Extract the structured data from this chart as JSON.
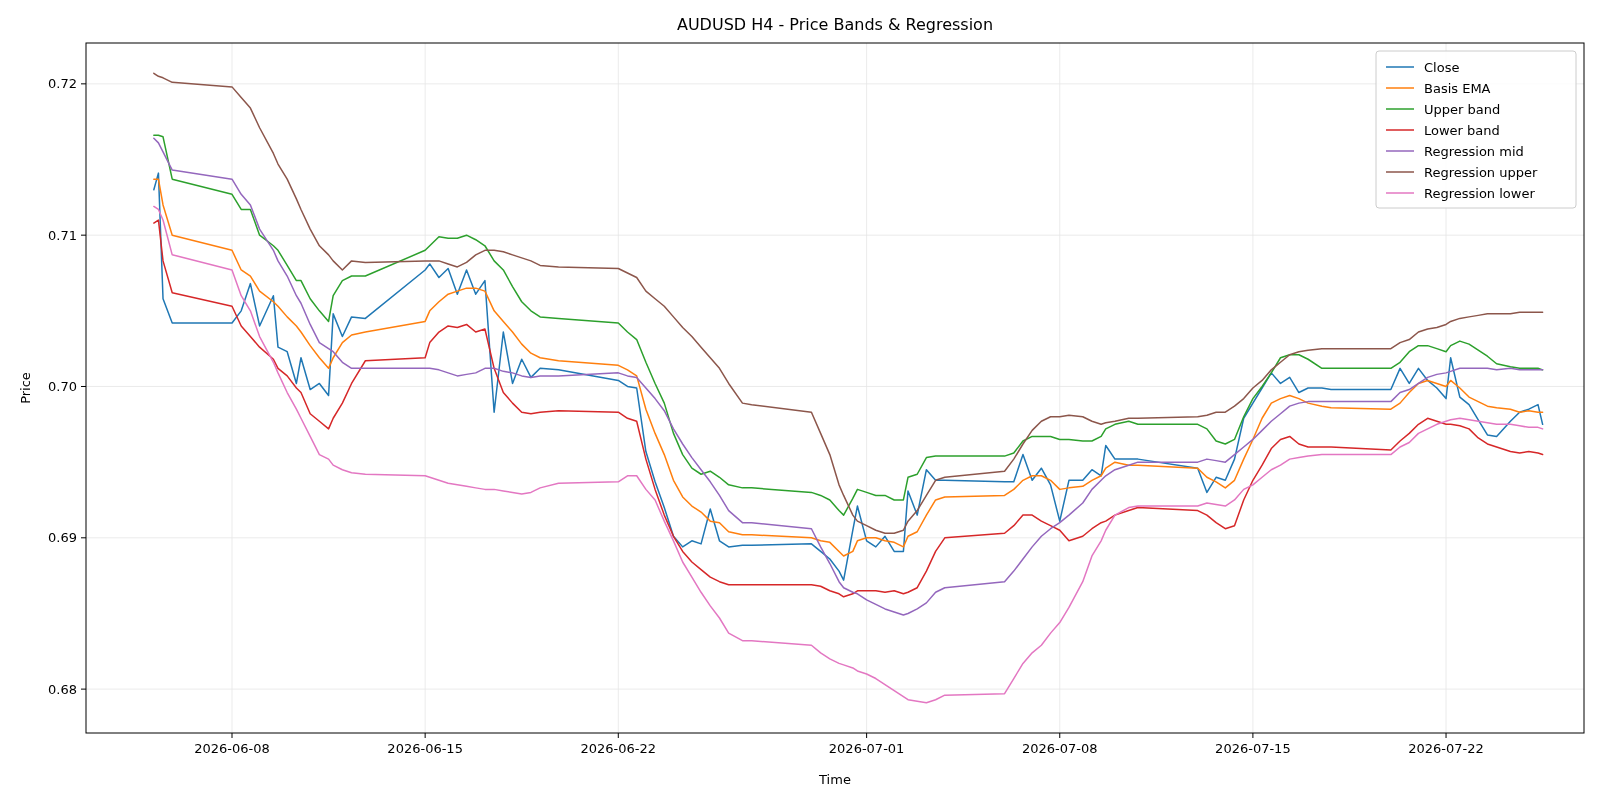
{
  "chart_data": {
    "type": "line",
    "title": "AUDUSD H4 - Price Bands & Regression",
    "xlabel": "Time",
    "ylabel": "Price",
    "x": [
      "2026-06-05T04:00",
      "2026-06-05T08:00",
      "2026-06-05T12:00",
      "2026-06-05T20:00",
      "2026-06-08T00:00",
      "2026-06-08T08:00",
      "2026-06-08T16:00",
      "2026-06-09T00:00",
      "2026-06-09T12:00",
      "2026-06-09T16:00",
      "2026-06-10T00:00",
      "2026-06-10T08:00",
      "2026-06-10T12:00",
      "2026-06-10T20:00",
      "2026-06-11T04:00",
      "2026-06-11T12:00",
      "2026-06-11T16:00",
      "2026-06-12T00:00",
      "2026-06-12T08:00",
      "2026-06-12T20:00",
      "2026-06-15T00:00",
      "2026-06-15T04:00",
      "2026-06-15T12:00",
      "2026-06-15T20:00",
      "2026-06-16T04:00",
      "2026-06-16T12:00",
      "2026-06-16T20:00",
      "2026-06-17T04:00",
      "2026-06-17T12:00",
      "2026-06-17T20:00",
      "2026-06-18T04:00",
      "2026-06-18T12:00",
      "2026-06-18T20:00",
      "2026-06-19T04:00",
      "2026-06-19T20:00",
      "2026-06-22T00:00",
      "2026-06-22T08:00",
      "2026-06-22T16:00",
      "2026-06-23T00:00",
      "2026-06-23T08:00",
      "2026-06-23T16:00",
      "2026-06-24T00:00",
      "2026-06-24T08:00",
      "2026-06-24T16:00",
      "2026-06-25T00:00",
      "2026-06-25T08:00",
      "2026-06-25T16:00",
      "2026-06-26T00:00",
      "2026-06-26T12:00",
      "2026-06-26T20:00",
      "2026-06-29T00:00",
      "2026-06-29T08:00",
      "2026-06-29T16:00",
      "2026-06-30T00:00",
      "2026-06-30T04:00",
      "2026-06-30T12:00",
      "2026-06-30T16:00",
      "2026-07-01T00:00",
      "2026-07-01T08:00",
      "2026-07-01T16:00",
      "2026-07-02T00:00",
      "2026-07-02T08:00",
      "2026-07-02T12:00",
      "2026-07-02T20:00",
      "2026-07-03T04:00",
      "2026-07-03T12:00",
      "2026-07-03T20:00",
      "2026-07-06T00:00",
      "2026-07-06T08:00",
      "2026-07-06T16:00",
      "2026-07-07T00:00",
      "2026-07-07T08:00",
      "2026-07-07T16:00",
      "2026-07-08T00:00",
      "2026-07-08T08:00",
      "2026-07-08T20:00",
      "2026-07-09T04:00",
      "2026-07-09T12:00",
      "2026-07-09T16:00",
      "2026-07-10T00:00",
      "2026-07-10T12:00",
      "2026-07-10T20:00",
      "2026-07-13T00:00",
      "2026-07-13T08:00",
      "2026-07-13T16:00",
      "2026-07-14T00:00",
      "2026-07-14T08:00",
      "2026-07-14T16:00",
      "2026-07-15T00:00",
      "2026-07-15T08:00",
      "2026-07-15T16:00",
      "2026-07-16T00:00",
      "2026-07-16T08:00",
      "2026-07-16T16:00",
      "2026-07-17T00:00",
      "2026-07-17T12:00",
      "2026-07-17T20:00",
      "2026-07-20T00:00",
      "2026-07-20T08:00",
      "2026-07-20T16:00",
      "2026-07-21T00:00",
      "2026-07-21T08:00",
      "2026-07-21T16:00",
      "2026-07-22T00:00",
      "2026-07-22T04:00",
      "2026-07-22T12:00",
      "2026-07-22T20:00",
      "2026-07-23T04:00",
      "2026-07-23T12:00",
      "2026-07-23T20:00",
      "2026-07-24T08:00",
      "2026-07-24T16:00",
      "2026-07-25T00:00",
      "2026-07-25T08:00",
      "2026-07-25T12:00"
    ],
    "series": [
      {
        "name": "Close",
        "color": "#1f77b4",
        "values": [
          0.713,
          0.7141,
          0.7058,
          0.7042,
          0.7042,
          0.705,
          0.7068,
          0.704,
          0.706,
          0.7026,
          0.7023,
          0.7002,
          0.7019,
          0.6998,
          0.7002,
          0.6994,
          0.7048,
          0.7033,
          0.7046,
          0.7045,
          0.7077,
          0.7081,
          0.7072,
          0.7078,
          0.7061,
          0.7077,
          0.7061,
          0.707,
          0.6983,
          0.7036,
          0.7002,
          0.7018,
          0.7006,
          0.7012,
          0.7011,
          0.7004,
          0.7,
          0.6999,
          0.6957,
          0.6937,
          0.692,
          0.6901,
          0.6894,
          0.6898,
          0.6896,
          0.6919,
          0.6898,
          0.6894,
          0.6895,
          0.6895,
          0.6896,
          0.6891,
          0.6886,
          0.6878,
          0.6872,
          0.6905,
          0.6921,
          0.6898,
          0.6894,
          0.6901,
          0.6891,
          0.6891,
          0.6931,
          0.6915,
          0.6945,
          0.6938,
          0.6938,
          0.6937,
          0.6937,
          0.6955,
          0.6938,
          0.6946,
          0.6935,
          0.6911,
          0.6938,
          0.6938,
          0.6945,
          0.6941,
          0.6961,
          0.6952,
          0.6952,
          0.6952,
          0.6946,
          0.693,
          0.694,
          0.6938,
          0.6952,
          0.6979,
          0.6989,
          0.6999,
          0.7009,
          0.7002,
          0.7006,
          0.6996,
          0.6999,
          0.6999,
          0.6998,
          0.6998,
          0.7012,
          0.7002,
          0.7012,
          0.7004,
          0.6999,
          0.6992,
          0.7019,
          0.6993,
          0.6988,
          0.6978,
          0.6968,
          0.6967,
          0.6977,
          0.6983,
          0.6985,
          0.6988,
          0.6975
        ]
      },
      {
        "name": "Basis EMA",
        "color": "#ff7f0e",
        "values": [
          0.7137,
          0.7137,
          0.712,
          0.71,
          0.709,
          0.7077,
          0.7073,
          0.7063,
          0.7056,
          0.7053,
          0.7046,
          0.704,
          0.7036,
          0.7027,
          0.7019,
          0.7012,
          0.7019,
          0.7029,
          0.7034,
          0.7036,
          0.7043,
          0.705,
          0.7056,
          0.7061,
          0.7063,
          0.7065,
          0.7065,
          0.7063,
          0.705,
          0.7043,
          0.7036,
          0.7028,
          0.7022,
          0.7019,
          0.7017,
          0.7014,
          0.7011,
          0.7007,
          0.6985,
          0.6969,
          0.6955,
          0.6938,
          0.6927,
          0.6921,
          0.6917,
          0.6911,
          0.691,
          0.6904,
          0.6902,
          0.6902,
          0.69,
          0.6898,
          0.6897,
          0.6891,
          0.6888,
          0.6891,
          0.6898,
          0.69,
          0.69,
          0.6898,
          0.6897,
          0.6894,
          0.6901,
          0.6904,
          0.6915,
          0.6925,
          0.6927,
          0.6928,
          0.6932,
          0.6938,
          0.6941,
          0.6941,
          0.6938,
          0.6932,
          0.6933,
          0.6934,
          0.6938,
          0.6941,
          0.6946,
          0.695,
          0.6948,
          0.6948,
          0.6946,
          0.694,
          0.6937,
          0.6933,
          0.6938,
          0.6952,
          0.6965,
          0.6979,
          0.6989,
          0.6992,
          0.6994,
          0.6992,
          0.6989,
          0.6987,
          0.6986,
          0.6985,
          0.6989,
          0.6996,
          0.7002,
          0.7004,
          0.7002,
          0.7,
          0.7004,
          0.6999,
          0.6993,
          0.699,
          0.6987,
          0.6986,
          0.6985,
          0.6983,
          0.6984,
          0.6983,
          0.6983
        ]
      },
      {
        "name": "Upper band",
        "color": "#2ca02c",
        "values": [
          0.7166,
          0.7166,
          0.7165,
          0.7137,
          0.7127,
          0.7117,
          0.7117,
          0.71,
          0.7093,
          0.709,
          0.708,
          0.707,
          0.707,
          0.7058,
          0.705,
          0.7043,
          0.706,
          0.707,
          0.7073,
          0.7073,
          0.709,
          0.7093,
          0.7099,
          0.7098,
          0.7098,
          0.71,
          0.7097,
          0.7093,
          0.7083,
          0.7077,
          0.7066,
          0.7056,
          0.705,
          0.7046,
          0.7045,
          0.7042,
          0.7036,
          0.7031,
          0.7016,
          0.7002,
          0.6989,
          0.6969,
          0.6955,
          0.6946,
          0.6942,
          0.6944,
          0.694,
          0.6935,
          0.6933,
          0.6933,
          0.693,
          0.6928,
          0.6925,
          0.6918,
          0.6915,
          0.6926,
          0.6932,
          0.693,
          0.6928,
          0.6928,
          0.6925,
          0.6925,
          0.694,
          0.6942,
          0.6953,
          0.6954,
          0.6954,
          0.6954,
          0.6956,
          0.6964,
          0.6967,
          0.6967,
          0.6967,
          0.6965,
          0.6965,
          0.6964,
          0.6964,
          0.6967,
          0.6972,
          0.6975,
          0.6977,
          0.6975,
          0.6975,
          0.6972,
          0.6964,
          0.6962,
          0.6965,
          0.698,
          0.6992,
          0.7,
          0.7009,
          0.7019,
          0.7021,
          0.7021,
          0.7018,
          0.7012,
          0.7012,
          0.7012,
          0.7016,
          0.7023,
          0.7027,
          0.7027,
          0.7025,
          0.7023,
          0.7027,
          0.703,
          0.7028,
          0.7024,
          0.702,
          0.7015,
          0.7013,
          0.7012,
          0.7012,
          0.7012,
          0.7011
        ]
      },
      {
        "name": "Lower band",
        "color": "#d62728",
        "values": [
          0.7108,
          0.711,
          0.7083,
          0.7062,
          0.7053,
          0.704,
          0.7033,
          0.7026,
          0.7018,
          0.7012,
          0.7007,
          0.6999,
          0.6996,
          0.6982,
          0.6977,
          0.6972,
          0.6979,
          0.6989,
          0.7002,
          0.7017,
          0.7019,
          0.7029,
          0.7036,
          0.704,
          0.7039,
          0.7041,
          0.7036,
          0.7038,
          0.7012,
          0.6996,
          0.6989,
          0.6983,
          0.6982,
          0.6983,
          0.6984,
          0.6983,
          0.6979,
          0.6977,
          0.6952,
          0.6932,
          0.6915,
          0.6901,
          0.6891,
          0.6884,
          0.6879,
          0.6874,
          0.6871,
          0.6869,
          0.6869,
          0.6869,
          0.6869,
          0.6868,
          0.6865,
          0.6863,
          0.6861,
          0.6863,
          0.6865,
          0.6865,
          0.6865,
          0.6864,
          0.6865,
          0.6863,
          0.6864,
          0.6867,
          0.6878,
          0.6891,
          0.69,
          0.6903,
          0.6908,
          0.6915,
          0.6915,
          0.6911,
          0.6908,
          0.6905,
          0.6898,
          0.6901,
          0.6906,
          0.691,
          0.6911,
          0.6915,
          0.6918,
          0.692,
          0.6918,
          0.6915,
          0.691,
          0.6906,
          0.6908,
          0.6925,
          0.6938,
          0.6948,
          0.6959,
          0.6965,
          0.6967,
          0.6962,
          0.696,
          0.696,
          0.696,
          0.6958,
          0.6964,
          0.6969,
          0.6975,
          0.6979,
          0.6977,
          0.6975,
          0.6975,
          0.6974,
          0.6972,
          0.6966,
          0.6962,
          0.696,
          0.6957,
          0.6956,
          0.6957,
          0.6956,
          0.6955
        ]
      },
      {
        "name": "Regression mid",
        "color": "#9467bd",
        "values": [
          0.7164,
          0.7161,
          0.7155,
          0.7143,
          0.7137,
          0.7127,
          0.712,
          0.7104,
          0.709,
          0.7083,
          0.7073,
          0.706,
          0.7055,
          0.7041,
          0.7029,
          0.7025,
          0.7023,
          0.7016,
          0.7012,
          0.7012,
          0.7012,
          0.7012,
          0.7011,
          0.7009,
          0.7007,
          0.7008,
          0.7009,
          0.7012,
          0.7012,
          0.701,
          0.7009,
          0.7007,
          0.7006,
          0.7007,
          0.7007,
          0.7009,
          0.7007,
          0.7006,
          0.6999,
          0.6992,
          0.6984,
          0.6972,
          0.6962,
          0.6953,
          0.6945,
          0.6937,
          0.6928,
          0.6918,
          0.691,
          0.691,
          0.6906,
          0.6894,
          0.6883,
          0.6871,
          0.6867,
          0.6864,
          0.6863,
          0.6859,
          0.6856,
          0.6853,
          0.6851,
          0.6849,
          0.685,
          0.6853,
          0.6857,
          0.6864,
          0.6867,
          0.6871,
          0.6878,
          0.6886,
          0.6894,
          0.6901,
          0.6906,
          0.691,
          0.6915,
          0.6923,
          0.6932,
          0.6938,
          0.6941,
          0.6945,
          0.6948,
          0.695,
          0.695,
          0.6952,
          0.6951,
          0.695,
          0.6955,
          0.696,
          0.6965,
          0.6971,
          0.6977,
          0.6982,
          0.6987,
          0.6989,
          0.699,
          0.699,
          0.699,
          0.699,
          0.6996,
          0.6998,
          0.7002,
          0.7006,
          0.7008,
          0.7009,
          0.701,
          0.7012,
          0.7012,
          0.7012,
          0.7012,
          0.7011,
          0.7012,
          0.7011,
          0.7011,
          0.7011,
          0.7011
        ]
      },
      {
        "name": "Regression upper",
        "color": "#8c564b",
        "values": [
          0.7207,
          0.7205,
          0.7204,
          0.7201,
          0.7198,
          0.7191,
          0.7184,
          0.7171,
          0.7154,
          0.7147,
          0.7137,
          0.7124,
          0.7117,
          0.7104,
          0.7093,
          0.7087,
          0.7083,
          0.7077,
          0.7083,
          0.7082,
          0.7083,
          0.7083,
          0.7083,
          0.7081,
          0.7079,
          0.7082,
          0.7087,
          0.709,
          0.709,
          0.7089,
          0.7087,
          0.7085,
          0.7083,
          0.708,
          0.7079,
          0.7078,
          0.7075,
          0.7072,
          0.7063,
          0.7058,
          0.7053,
          0.7046,
          0.7039,
          0.7033,
          0.7026,
          0.7019,
          0.7012,
          0.7002,
          0.6989,
          0.6988,
          0.6983,
          0.6969,
          0.6955,
          0.6935,
          0.6928,
          0.6915,
          0.6911,
          0.6908,
          0.6905,
          0.6903,
          0.6903,
          0.6905,
          0.6911,
          0.6918,
          0.6928,
          0.6938,
          0.694,
          0.6944,
          0.6952,
          0.6962,
          0.6971,
          0.6977,
          0.698,
          0.698,
          0.6981,
          0.698,
          0.6977,
          0.6975,
          0.6976,
          0.6977,
          0.6979,
          0.6979,
          0.698,
          0.6981,
          0.6983,
          0.6983,
          0.6987,
          0.6992,
          0.6999,
          0.7004,
          0.7011,
          0.7016,
          0.7021,
          0.7023,
          0.7024,
          0.7025,
          0.7025,
          0.7025,
          0.7029,
          0.7031,
          0.7036,
          0.7038,
          0.7039,
          0.7041,
          0.7043,
          0.7045,
          0.7046,
          0.7047,
          0.7048,
          0.7048,
          0.7048,
          0.7049,
          0.7049,
          0.7049,
          0.7049
        ]
      },
      {
        "name": "Regression lower",
        "color": "#e377c2",
        "values": [
          0.7119,
          0.7117,
          0.711,
          0.7087,
          0.7077,
          0.706,
          0.705,
          0.7033,
          0.7016,
          0.7009,
          0.6996,
          0.6985,
          0.6979,
          0.6967,
          0.6955,
          0.6952,
          0.6948,
          0.6945,
          0.6943,
          0.6942,
          0.6941,
          0.694,
          0.6938,
          0.6936,
          0.6935,
          0.6934,
          0.6933,
          0.6932,
          0.6932,
          0.6931,
          0.693,
          0.6929,
          0.693,
          0.6933,
          0.6936,
          0.6937,
          0.6941,
          0.6941,
          0.6932,
          0.6925,
          0.6911,
          0.6898,
          0.6884,
          0.6874,
          0.6864,
          0.6855,
          0.6847,
          0.6837,
          0.6832,
          0.6832,
          0.6829,
          0.6824,
          0.682,
          0.6817,
          0.6816,
          0.6814,
          0.6812,
          0.681,
          0.6807,
          0.6803,
          0.6799,
          0.6795,
          0.6793,
          0.6792,
          0.6791,
          0.6793,
          0.6796,
          0.6797,
          0.6807,
          0.6817,
          0.6824,
          0.6829,
          0.6837,
          0.6844,
          0.6854,
          0.6871,
          0.6888,
          0.6898,
          0.6905,
          0.6915,
          0.692,
          0.6921,
          0.6921,
          0.6923,
          0.6922,
          0.6921,
          0.6925,
          0.6932,
          0.6935,
          0.694,
          0.6945,
          0.6948,
          0.6952,
          0.6953,
          0.6954,
          0.6955,
          0.6955,
          0.6955,
          0.696,
          0.6963,
          0.6969,
          0.6972,
          0.6975,
          0.6977,
          0.6978,
          0.6979,
          0.6978,
          0.6977,
          0.6976,
          0.6975,
          0.6975,
          0.6974,
          0.6973,
          0.6973,
          0.6972
        ]
      }
    ],
    "xlim": [
      "2026-06-02T17:00",
      "2026-07-27T00:00"
    ],
    "xticks": [
      "2026-06-08",
      "2026-06-15",
      "2026-06-22",
      "2026-07-01",
      "2026-07-08",
      "2026-07-15",
      "2026-07-22"
    ],
    "ylim": [
      0.6771,
      0.7227
    ],
    "yticks": [
      {
        "value": 0.68,
        "label": "0.68"
      },
      {
        "value": 0.69,
        "label": "0.69"
      },
      {
        "value": 0.7,
        "label": "0.70"
      },
      {
        "value": 0.71,
        "label": "0.71"
      },
      {
        "value": 0.72,
        "label": "0.72"
      }
    ],
    "grid": true,
    "legend": "top right",
    "line_style": "solid",
    "marker": "none"
  }
}
